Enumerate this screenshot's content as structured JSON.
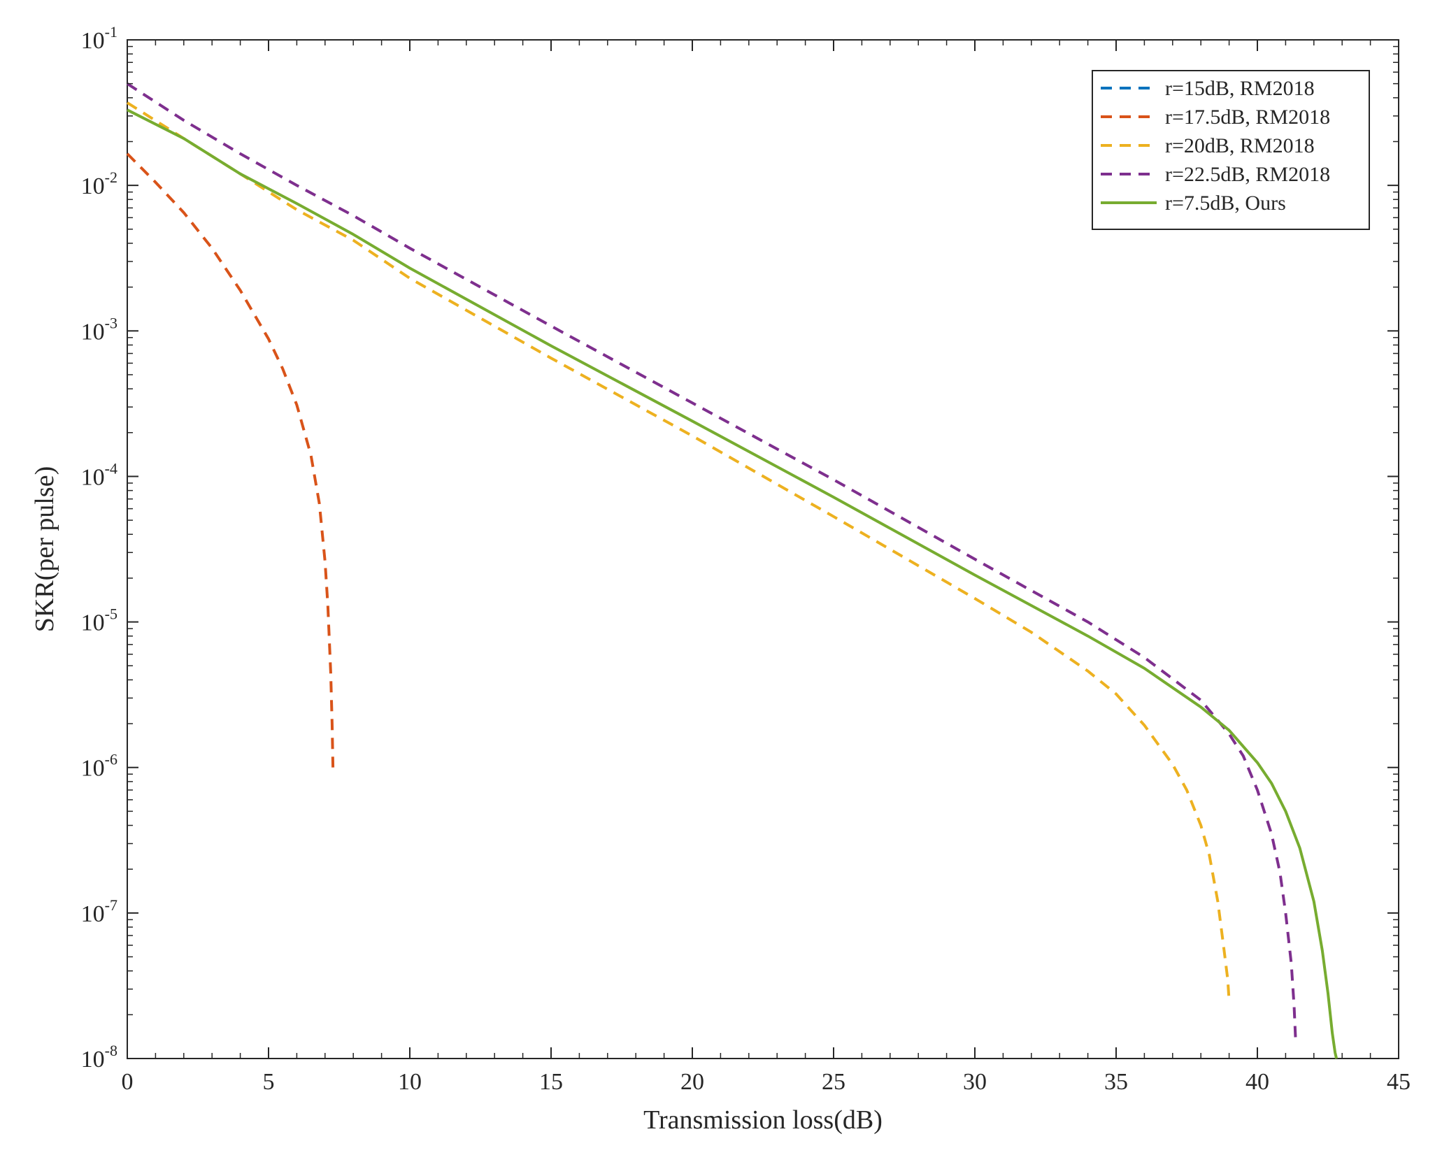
{
  "chart_data": {
    "type": "line",
    "xlabel": "Transmission loss(dB)",
    "ylabel": "SKR(per pulse)",
    "xlim": [
      0,
      45
    ],
    "ylim": [
      1e-08,
      0.1
    ],
    "yscale": "log",
    "grid": false,
    "legend_position": "top-right",
    "x_ticks": [
      "0",
      "5",
      "10",
      "15",
      "20",
      "25",
      "30",
      "35",
      "40",
      "45"
    ],
    "y_ticks": [
      {
        "value": 1e-08,
        "base": "10",
        "exp": "-8"
      },
      {
        "value": 1e-07,
        "base": "10",
        "exp": "-7"
      },
      {
        "value": 1e-06,
        "base": "10",
        "exp": "-6"
      },
      {
        "value": 1e-05,
        "base": "10",
        "exp": "-5"
      },
      {
        "value": 0.0001,
        "base": "10",
        "exp": "-4"
      },
      {
        "value": 0.001,
        "base": "10",
        "exp": "-3"
      },
      {
        "value": 0.01,
        "base": "10",
        "exp": "-2"
      },
      {
        "value": 0.1,
        "base": "10",
        "exp": "-1"
      }
    ],
    "series": [
      {
        "name": "r=15dB, RM2018",
        "color": "#0072BD",
        "dash": true,
        "x": [],
        "y": []
      },
      {
        "name": "r=17.5dB, RM2018",
        "color": "#D95319",
        "dash": true,
        "x": [
          0,
          1,
          2,
          3,
          4,
          5,
          5.5,
          6,
          6.5,
          6.8,
          7.0,
          7.1,
          7.2,
          7.25,
          7.28
        ],
        "y": [
          0.0165,
          0.0105,
          0.0065,
          0.0037,
          0.0019,
          0.00088,
          0.00055,
          0.00031,
          0.00014,
          6.5e-05,
          2.6e-05,
          1.3e-05,
          4.5e-06,
          2e-06,
          1e-06
        ]
      },
      {
        "name": "r=20dB, RM2018",
        "color": "#EDB120",
        "dash": true,
        "x": [
          0,
          2,
          4,
          6,
          8,
          10,
          15,
          20,
          25,
          30,
          32,
          34,
          35,
          36,
          37,
          37.5,
          38,
          38.3,
          38.6,
          38.8,
          38.95,
          39.0
        ],
        "y": [
          0.037,
          0.021,
          0.012,
          0.0068,
          0.0042,
          0.0023,
          0.00065,
          0.00019,
          5.3e-05,
          1.45e-05,
          8.5e-06,
          4.6e-06,
          3.2e-06,
          1.95e-06,
          1.05e-06,
          7e-07,
          4e-07,
          2.5e-07,
          1.2e-07,
          6e-08,
          3.5e-08,
          2.5e-08
        ]
      },
      {
        "name": "r=22.5dB, RM2018",
        "color": "#7E2F8E",
        "dash": true,
        "x": [
          0,
          2,
          4,
          6,
          8,
          10,
          15,
          20,
          25,
          30,
          34,
          36,
          38,
          39,
          39.5,
          40,
          40.5,
          40.8,
          41.0,
          41.2,
          41.3,
          41.35
        ],
        "y": [
          0.05,
          0.028,
          0.0165,
          0.01,
          0.0062,
          0.0037,
          0.00108,
          0.00032,
          9.5e-05,
          2.7e-05,
          1e-05,
          5.7e-06,
          2.9e-06,
          1.7e-06,
          1.2e-06,
          7e-07,
          3.5e-07,
          1.9e-07,
          1e-07,
          4.5e-08,
          2.3e-08,
          1.4e-08
        ]
      },
      {
        "name": "r=7.5dB, Ours",
        "color": "#77AC30",
        "dash": false,
        "x": [
          0,
          2,
          4,
          6,
          8,
          10,
          15,
          20,
          25,
          30,
          34,
          36,
          38,
          39,
          40,
          40.5,
          41,
          41.5,
          42,
          42.3,
          42.5,
          42.65,
          42.75,
          42.8
        ],
        "y": [
          0.033,
          0.021,
          0.012,
          0.0075,
          0.0046,
          0.0027,
          0.00079,
          0.00024,
          7.2e-05,
          2.1e-05,
          8e-06,
          4.8e-06,
          2.6e-06,
          1.8e-06,
          1.08e-06,
          7.8e-07,
          5e-07,
          2.8e-07,
          1.2e-07,
          5.5e-08,
          2.8e-08,
          1.5e-08,
          1.1e-08,
          1e-08
        ]
      }
    ]
  }
}
